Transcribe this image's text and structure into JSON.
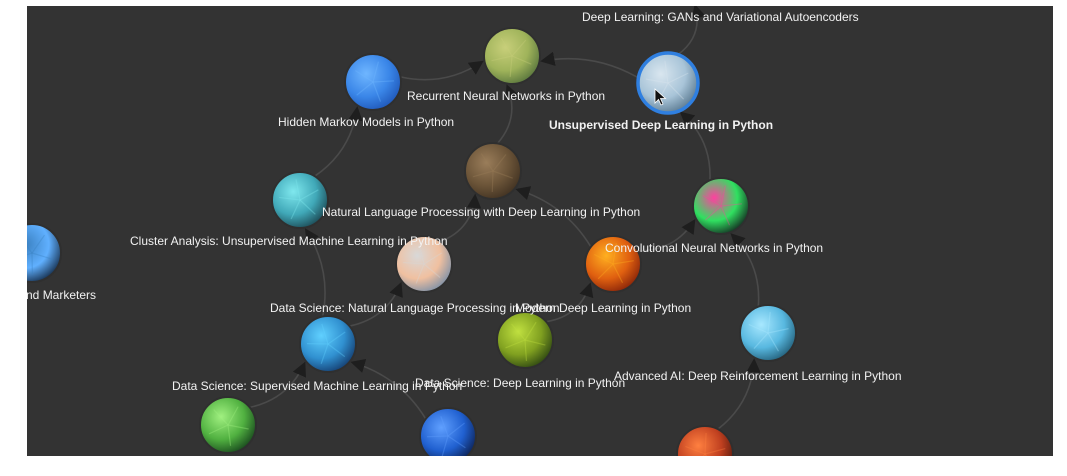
{
  "graph": {
    "nodes": [
      {
        "id": "gans",
        "label": "Deep Learning: GANs and Variational Autoencoders",
        "palette": [
          "#6a7a8a",
          "#2a3440",
          "#a0b0c0"
        ]
      },
      {
        "id": "rnn",
        "label": "Recurrent Neural Networks in Python",
        "palette": [
          "#c8cf7a",
          "#4d6b38",
          "#9fb35a"
        ]
      },
      {
        "id": "unsup",
        "label": "Unsupervised Deep Learning in Python",
        "palette": [
          "#d9e6ef",
          "#4c6c84",
          "#a8c4d8"
        ],
        "selected": true,
        "bold": true
      },
      {
        "id": "hmm",
        "label": "Hidden Markov Models in Python",
        "palette": [
          "#6fb6ff",
          "#1a4fb0",
          "#3a86e8"
        ]
      },
      {
        "id": "nlp_dl",
        "label": "Natural Language Processing with Deep Learning in Python",
        "palette": [
          "#9a7d5a",
          "#3a2c1e",
          "#6b5438"
        ]
      },
      {
        "id": "cluster",
        "label": "Cluster Analysis: Unsupervised Machine Learning in Python",
        "palette": [
          "#7fe8ee",
          "#163a44",
          "#40a8b8"
        ]
      },
      {
        "id": "cnn",
        "label": "Convolutional Neural Networks in Python",
        "palette": [
          "#ff40a0",
          "#101018",
          "#30e060"
        ]
      },
      {
        "id": "marketers",
        "label": "s and Marketers",
        "palette": [
          "#3a80c0",
          "#0a1a30",
          "#60b0ff"
        ]
      },
      {
        "id": "ds_nlp",
        "label": "Data Science: Natural Language Processing in Python",
        "palette": [
          "#d8d8d8",
          "#6a88a8",
          "#f0c0a0"
        ]
      },
      {
        "id": "modern_dl",
        "label": "Modern Deep Learning in Python",
        "palette": [
          "#ffb020",
          "#7a1a08",
          "#e06010"
        ]
      },
      {
        "id": "ds_dl",
        "label": "Data Science: Deep Learning in Python",
        "palette": [
          "#c0e040",
          "#203810",
          "#80a020"
        ]
      },
      {
        "id": "ds_sup",
        "label": "Data Science: Supervised Machine Learning in Python",
        "palette": [
          "#60d0ff",
          "#103060",
          "#3090d0"
        ]
      },
      {
        "id": "adv_ai",
        "label": "Advanced AI: Deep Reinforcement Learning in Python",
        "palette": [
          "#a8e8ff",
          "#1a5068",
          "#58b8e0"
        ]
      },
      {
        "id": "green_code",
        "label": "",
        "palette": [
          "#a0f080",
          "#103818",
          "#50b040"
        ]
      },
      {
        "id": "blue_neuron",
        "label": "",
        "palette": [
          "#60a0ff",
          "#0a1840",
          "#2060d0"
        ]
      },
      {
        "id": "orange_node",
        "label": "",
        "palette": [
          "#ff8040",
          "#401008",
          "#c04020"
        ]
      }
    ],
    "edges": [
      [
        "unsup",
        "gans"
      ],
      [
        "unsup",
        "rnn"
      ],
      [
        "hmm",
        "rnn"
      ],
      [
        "nlp_dl",
        "rnn"
      ],
      [
        "cluster",
        "hmm"
      ],
      [
        "cnn",
        "unsup"
      ],
      [
        "modern_dl",
        "cnn"
      ],
      [
        "modern_dl",
        "nlp_dl"
      ],
      [
        "ds_nlp",
        "nlp_dl"
      ],
      [
        "ds_sup",
        "cluster"
      ],
      [
        "ds_dl",
        "modern_dl"
      ],
      [
        "adv_ai",
        "cnn"
      ],
      [
        "ds_sup",
        "ds_nlp"
      ],
      [
        "green_code",
        "ds_sup"
      ],
      [
        "blue_neuron",
        "ds_sup"
      ],
      [
        "orange_node",
        "adv_ai"
      ]
    ]
  }
}
